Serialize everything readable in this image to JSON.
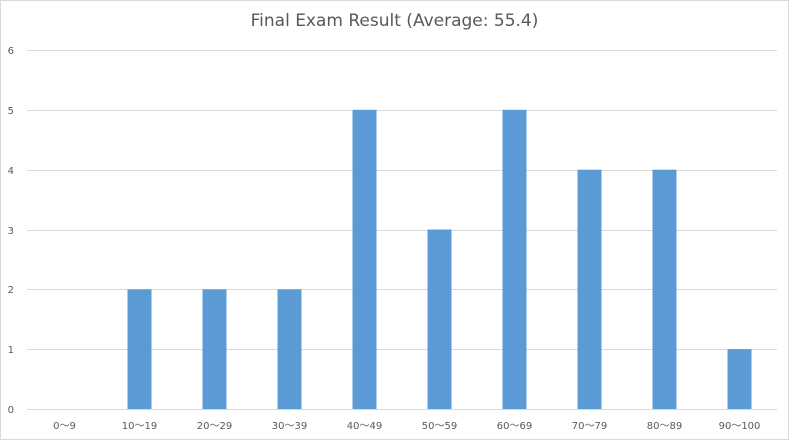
{
  "chart_data": {
    "type": "bar",
    "title": "Final Exam Result (Average: 55.4)",
    "xlabel": "",
    "ylabel": "",
    "categories": [
      "0～9",
      "10～19",
      "20～29",
      "30～39",
      "40～49",
      "50～59",
      "60～69",
      "70～79",
      "80～89",
      "90～100"
    ],
    "values": [
      0,
      2,
      2,
      2,
      5,
      3,
      5,
      4,
      4,
      1
    ],
    "ylim": [
      0,
      6
    ],
    "yticks": [
      0,
      1,
      2,
      3,
      4,
      5,
      6
    ],
    "grid": true,
    "legend": "none",
    "bar_color": "#5b9bd5",
    "grid_color": "#d9d9d9"
  }
}
